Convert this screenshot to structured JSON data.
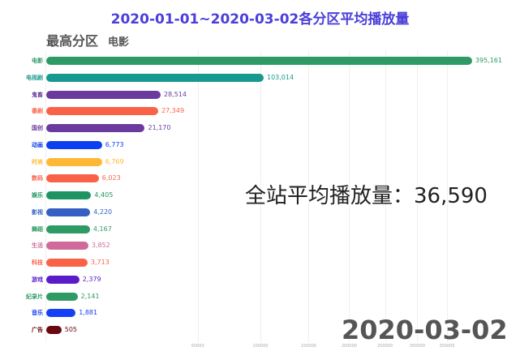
{
  "header": {
    "title": "2020-01-01~2020-03-02各分区平均播放量",
    "top_label": "最高分区",
    "top_category": "电影"
  },
  "overlay": {
    "average_label": "全站平均播放量：36,590",
    "date_label": "2020-03-02"
  },
  "chart_data": {
    "type": "bar",
    "orientation": "horizontal",
    "title": "2020-01-01~2020-03-02各分区平均播放量",
    "subtitle": "最高分区 电影",
    "xlabel": "",
    "ylabel": "",
    "x_scale": "sqrt",
    "xlim": [
      0,
      395161
    ],
    "grid": true,
    "x_ticks": [
      "50000",
      "100000",
      "150000",
      "200000",
      "250000",
      "300000",
      "350000"
    ],
    "categories": [
      "电影",
      "电视剧",
      "鬼畜",
      "番剧",
      "国创",
      "动画",
      "时尚",
      "数码",
      "娱乐",
      "影视",
      "舞蹈",
      "生活",
      "科技",
      "游戏",
      "纪录片",
      "音乐",
      "广告"
    ],
    "values": [
      395161,
      103014,
      28514,
      27349,
      21170,
      6773,
      6769,
      6023,
      4405,
      4220,
      4167,
      3852,
      3713,
      2379,
      2141,
      1881,
      505
    ],
    "value_labels": [
      "395,161",
      "103,014",
      "28,514",
      "27,349",
      "21,170",
      "6,773",
      "6,769",
      "6,023",
      "4,405",
      "4,220",
      "4,167",
      "3,852",
      "3,713",
      "2,379",
      "2,141",
      "1,881",
      "505"
    ],
    "colors": [
      "#2e9a65",
      "#17998f",
      "#6a3a9e",
      "#fa6248",
      "#6a3a9e",
      "#0b3ff0",
      "#ffb833",
      "#fa6248",
      "#1e9462",
      "#3460c4",
      "#2e9a65",
      "#cf6a9a",
      "#fa6248",
      "#5a1bc9",
      "#2e9a65",
      "#1640f5",
      "#6a0710"
    ],
    "annotations": [
      "全站平均播放量：36,590",
      "2020-03-02"
    ]
  }
}
